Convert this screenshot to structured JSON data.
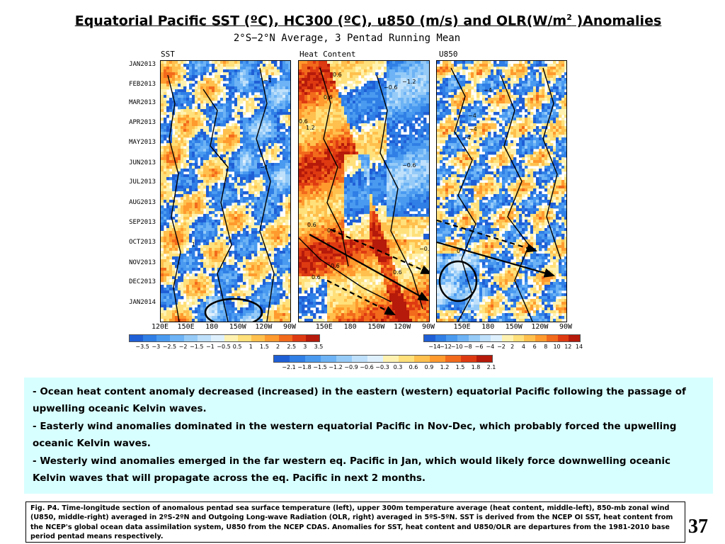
{
  "title_main": "Equatorial Pacific SST (ºC), HC300 (ºC), u850  (m/s) and OLR(W/m",
  "title_sup": "2",
  "title_end": " )Anomalies",
  "subtitle": "2°S−2°N Average, 3 Pentad Running Mean",
  "panels": [
    {
      "title": "SST"
    },
    {
      "title": "Heat Content"
    },
    {
      "title": "U850"
    }
  ],
  "months": [
    "JAN2013",
    "FEB2013",
    "MAR2013",
    "APR2013",
    "MAY2013",
    "JUN2013",
    "JUL2013",
    "AUG2013",
    "SEP2013",
    "OCT2013",
    "NOV2013",
    "DEC2013",
    "JAN2014"
  ],
  "longitudes": [
    "120E",
    "150E",
    "180",
    "150W",
    "120W",
    "90W"
  ],
  "colorbars": {
    "sst": {
      "labels": [
        "−3.5",
        "−3",
        "−2.5",
        "−2",
        "−1.5",
        "−1",
        "−0.5",
        "0.5",
        "1",
        "1.5",
        "2",
        "2.5",
        "3",
        "3.5"
      ]
    },
    "u850": {
      "labels": [
        "−14",
        "−12",
        "−10",
        "−8",
        "−6",
        "−4",
        "−2",
        "2",
        "4",
        "6",
        "8",
        "10",
        "12",
        "14"
      ]
    },
    "hc": {
      "labels": [
        "−2.1",
        "−1.8",
        "−1.5",
        "−1.2",
        "−0.9",
        "−0.6",
        "−0.3",
        "0.3",
        "0.6",
        "0.9",
        "1.2",
        "1.5",
        "1.8",
        "2.1"
      ]
    }
  },
  "contour_labels": [
    {
      "panel": "sst",
      "text": "−1"
    },
    {
      "panel": "sst",
      "text": "−1"
    },
    {
      "panel": "sst",
      "text": "1"
    },
    {
      "panel": "hc",
      "text": "0.6"
    },
    {
      "panel": "hc",
      "text": "−1.2"
    },
    {
      "panel": "hc",
      "text": "−0.6"
    },
    {
      "panel": "hc",
      "text": "0.6"
    },
    {
      "panel": "hc",
      "text": "0.6"
    },
    {
      "panel": "hc",
      "text": "1.2"
    },
    {
      "panel": "hc",
      "text": "−0.6"
    },
    {
      "panel": "hc",
      "text": "0.6"
    },
    {
      "panel": "hc",
      "text": "0.6"
    },
    {
      "panel": "hc",
      "text": "0.6"
    },
    {
      "panel": "hc",
      "text": "0.6"
    },
    {
      "panel": "hc",
      "text": "0.6"
    },
    {
      "panel": "hc",
      "text": "−0."
    },
    {
      "panel": "u850",
      "text": "−4"
    },
    {
      "panel": "u850",
      "text": "−4"
    },
    {
      "panel": "u850",
      "text": "−4"
    },
    {
      "panel": "u850",
      "text": "−4"
    },
    {
      "panel": "u850",
      "text": "0"
    }
  ],
  "colors": {
    "neg": [
      "#1f5fd6",
      "#2f7fe6",
      "#4a9af0",
      "#6db3f5",
      "#96cbf8",
      "#bfe0fb",
      "#dff0fd"
    ],
    "pos": [
      "#fff2b0",
      "#ffe07a",
      "#ffc04d",
      "#ff9a2e",
      "#f26a1c",
      "#de3a12",
      "#b51a0a"
    ],
    "textbox_bg": "#d8ffff"
  },
  "bullets": [
    {
      "dash": "- ",
      "text": "Ocean heat content anomaly decreased (increased) in the eastern (western) equatorial Pacific following the passage of upwelling oceanic Kelvin waves."
    },
    {
      "dash": "- ",
      "text": "Easterly wind anomalies dominated in the western equatorial Pacific in Nov-Dec, which probably forced the upwelling oceanic Kelvin waves."
    },
    {
      "dash": "- ",
      "text": "Westerly wind anomalies emerged in the far western eq. Pacific in Jan, which would likely force downwelling oceanic Kelvin waves that will propagate across the eq. Pacific in next 2 months."
    }
  ],
  "caption": "Fig. P4. Time-longitude section of anomalous pentad sea surface temperature (left), upper 300m temperature average (heat content, middle-left), 850-mb zonal wind (U850, middle-right) averaged in 2ºS-2ºN and Outgoing Long-wave Radiation (OLR, right) averaged in 5ºS-5ºN. SST is derived from the NCEP OI SST, heat content from the NCEP's global ocean data assimilation system, U850 from the NCEP CDAS. Anomalies for SST, heat content and U850/OLR are departures from the 1981-2010 base period pentad means respectively.",
  "page_number": "37",
  "chart_data": [
    {
      "type": "heatmap",
      "title": "SST",
      "x": [
        "120E",
        "150E",
        "180",
        "150W",
        "120W",
        "90W"
      ],
      "y": [
        "JAN2013",
        "FEB2013",
        "MAR2013",
        "APR2013",
        "MAY2013",
        "JUN2013",
        "JUL2013",
        "AUG2013",
        "SEP2013",
        "OCT2013",
        "NOV2013",
        "DEC2013",
        "JAN2014"
      ],
      "colorbar": [
        "−3.5",
        "−3",
        "−2.5",
        "−2",
        "−1.5",
        "−1",
        "−0.5",
        "0.5",
        "1",
        "1.5",
        "2",
        "2.5",
        "3",
        "3.5"
      ],
      "contour_labels": [
        "−1",
        "−1",
        "1"
      ],
      "annotations": [
        "oval around 180–150W in JAN2014 (cooling)"
      ]
    },
    {
      "type": "heatmap",
      "title": "Heat Content",
      "x": [
        "120E",
        "150E",
        "180",
        "150W",
        "120W",
        "90W"
      ],
      "y": [
        "JAN2013",
        "FEB2013",
        "MAR2013",
        "APR2013",
        "MAY2013",
        "JUN2013",
        "JUL2013",
        "AUG2013",
        "SEP2013",
        "OCT2013",
        "NOV2013",
        "DEC2013",
        "JAN2014"
      ],
      "colorbar": [
        "−2.1",
        "−1.8",
        "−1.5",
        "−1.2",
        "−0.9",
        "−0.6",
        "−0.3",
        "0.3",
        "0.6",
        "0.9",
        "1.2",
        "1.5",
        "1.8",
        "2.1"
      ],
      "contour_labels": [
        "0.6",
        "−1.2",
        "−0.6",
        "0.6",
        "0.6",
        "1.2",
        "−0.6",
        "0.6",
        "0.6",
        "0.6",
        "0.6",
        "0.6",
        "−0."
      ],
      "annotations": [
        "solid arrow 120E (OCT2013) to 90W (JAN2014)",
        "dashed arrow 150E (SEP2013) to 90W (NOV2013)",
        "dashed arrow 150E (DEC2013) to 150W (JAN2014)"
      ]
    },
    {
      "type": "heatmap",
      "title": "U850",
      "x": [
        "120E",
        "150E",
        "180",
        "150W",
        "120W",
        "90W"
      ],
      "y": [
        "JAN2013",
        "FEB2013",
        "MAR2013",
        "APR2013",
        "MAY2013",
        "JUN2013",
        "JUL2013",
        "AUG2013",
        "SEP2013",
        "OCT2013",
        "NOV2013",
        "DEC2013",
        "JAN2014"
      ],
      "colorbar": [
        "−14",
        "−12",
        "−10",
        "−8",
        "−6",
        "−4",
        "−2",
        "2",
        "4",
        "6",
        "8",
        "10",
        "12",
        "14"
      ],
      "contour_labels": [
        "−4",
        "−4",
        "−4",
        "−4",
        "0"
      ],
      "annotations": [
        "circle around 120E–150E in NOV–DEC2013 (easterly anomalies)",
        "solid arrow 120E (OCT2013) to 150W (NOV2013)",
        "dashed arrow 120E (SEP2013) to 150W (OCT2013)"
      ]
    }
  ]
}
